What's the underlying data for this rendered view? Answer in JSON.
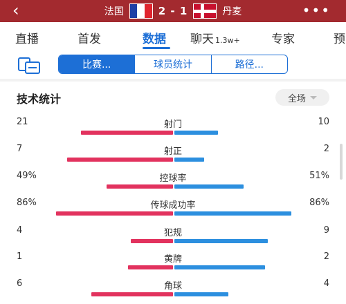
{
  "header": {
    "home_team": "法国",
    "score": "2 - 1",
    "away_team": "丹麦",
    "colors": {
      "background": "#a32a2f"
    }
  },
  "tabs": [
    {
      "label": "直播",
      "active": false
    },
    {
      "label": "首发",
      "active": false
    },
    {
      "label": "数据",
      "active": true
    },
    {
      "label": "聊天",
      "badge": "1.3w+",
      "active": false
    },
    {
      "label": "专家",
      "active": false
    },
    {
      "label": "预",
      "active": false
    }
  ],
  "subtabs": [
    {
      "label": "比赛...",
      "active": true
    },
    {
      "label": "球员统计",
      "active": false
    },
    {
      "label": "路径...",
      "active": false
    }
  ],
  "stats_section": {
    "title": "技术统计",
    "range_selector": "全场",
    "rows": [
      {
        "name": "射门",
        "left": "21",
        "right": "10",
        "left_share": 0.68,
        "right_share": 0.32
      },
      {
        "name": "射正",
        "left": "7",
        "right": "2",
        "left_share": 0.78,
        "right_share": 0.22
      },
      {
        "name": "控球率",
        "left": "49%",
        "right": "51%",
        "left_share": 0.49,
        "right_share": 0.51
      },
      {
        "name": "传球成功率",
        "left": "86%",
        "right": "86%",
        "left_share": 0.86,
        "right_share": 0.86
      },
      {
        "name": "犯规",
        "left": "4",
        "right": "9",
        "left_share": 0.31,
        "right_share": 0.69
      },
      {
        "name": "黄牌",
        "left": "1",
        "right": "2",
        "left_share": 0.33,
        "right_share": 0.67
      },
      {
        "name": "角球",
        "left": "6",
        "right": "4",
        "left_share": 0.6,
        "right_share": 0.4
      }
    ]
  },
  "colors": {
    "accent": "#1d6fd6",
    "home_bar": "#e2325e",
    "away_bar": "#2c8fdf"
  }
}
